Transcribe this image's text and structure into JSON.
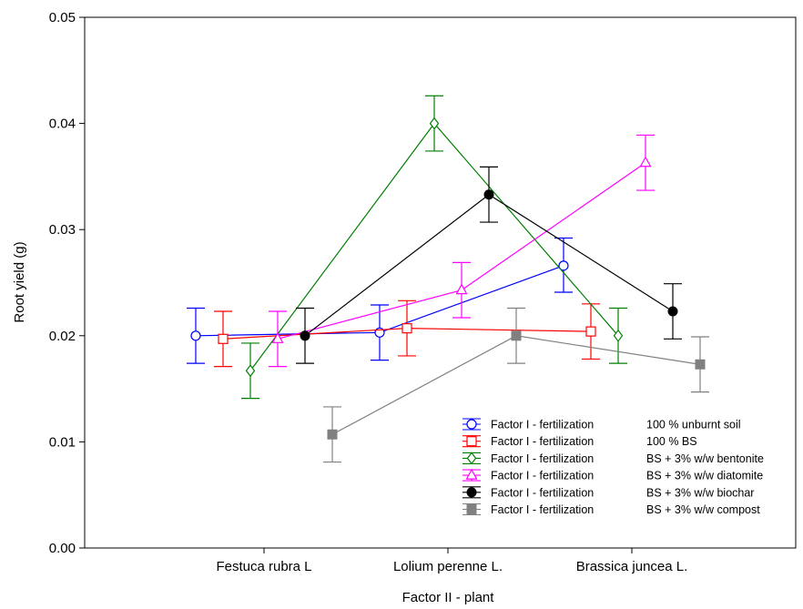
{
  "chart_data": {
    "type": "line",
    "title": "",
    "xlabel": "Factor II - plant",
    "ylabel": "Root yield (g)",
    "categories": [
      "Festuca rubra L",
      "Lolium perenne L.",
      "Brassica juncea L."
    ],
    "ylim": [
      0,
      0.05
    ],
    "yticks": [
      "0.00",
      "0.01",
      "0.02",
      "0.03",
      "0.04",
      "0.05"
    ],
    "grid": false,
    "legend_position": "bottom-right",
    "series": [
      {
        "legend_factor": "Factor I - fertilization",
        "legend_level": "100 % unburnt soil",
        "color": "#0000ff",
        "marker": "circle-open",
        "values": [
          0.02,
          0.0203,
          0.0266
        ],
        "err_low": [
          0.0174,
          0.0177,
          0.0241
        ],
        "err_high": [
          0.0226,
          0.0229,
          0.0292
        ]
      },
      {
        "legend_factor": "Factor I - fertilization",
        "legend_level": "100 % BS",
        "color": "#ff0000",
        "marker": "square-open",
        "values": [
          0.0197,
          0.0207,
          0.0204
        ],
        "err_low": [
          0.0171,
          0.0181,
          0.0178
        ],
        "err_high": [
          0.0223,
          0.0233,
          0.023
        ]
      },
      {
        "legend_factor": "Factor I - fertilization",
        "legend_level": "BS + 3% w/w bentonite",
        "color": "#008000",
        "marker": "diamond-open",
        "values": [
          0.0167,
          0.04,
          0.02
        ],
        "err_low": [
          0.0141,
          0.0374,
          0.0174
        ],
        "err_high": [
          0.0193,
          0.0426,
          0.0226
        ]
      },
      {
        "legend_factor": "Factor I - fertilization",
        "legend_level": "BS + 3% w/w diatomite",
        "color": "#ff00ff",
        "marker": "triangle-open",
        "values": [
          0.0197,
          0.0243,
          0.0363
        ],
        "err_low": [
          0.0171,
          0.0217,
          0.0337
        ],
        "err_high": [
          0.0223,
          0.0269,
          0.0389
        ]
      },
      {
        "legend_factor": "Factor I - fertilization",
        "legend_level": "BS + 3% w/w biochar",
        "color": "#000000",
        "marker": "circle-filled",
        "values": [
          0.02,
          0.0333,
          0.0223
        ],
        "err_low": [
          0.0174,
          0.0307,
          0.0197
        ],
        "err_high": [
          0.0226,
          0.0359,
          0.0249
        ]
      },
      {
        "legend_factor": "Factor I - fertilization",
        "legend_level": "BS + 3% w/w compost",
        "color": "#808080",
        "marker": "square-filled",
        "values": [
          0.0107,
          0.02,
          0.0173
        ],
        "err_low": [
          0.0081,
          0.0174,
          0.0147
        ],
        "err_high": [
          0.0133,
          0.0226,
          0.0199
        ]
      }
    ]
  }
}
